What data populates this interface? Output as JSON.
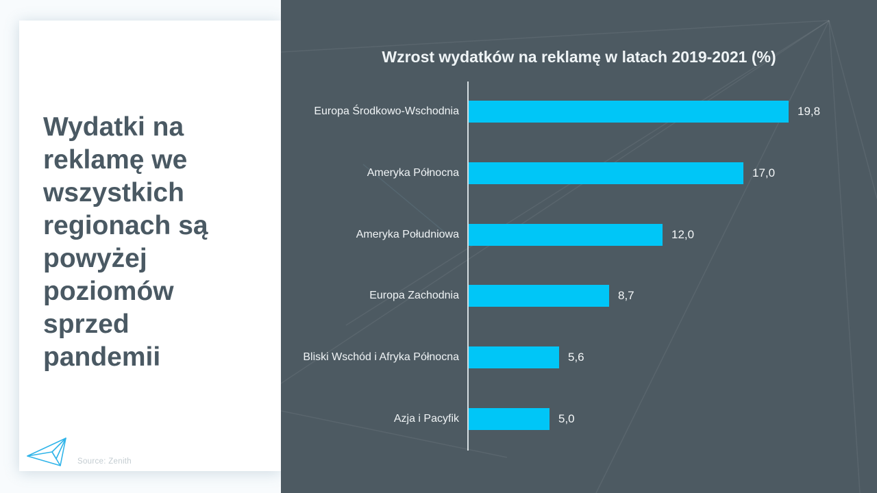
{
  "page": {
    "background": "#4d5a62",
    "left_background": "#f8fbfd",
    "accent": "#00c6f7"
  },
  "left_card": {
    "headline_lines": [
      "Wydatki na",
      "reklamę we",
      "wszystkich",
      "regionach są",
      "powyżej",
      "poziomów",
      "sprzed",
      "pandemii"
    ],
    "headline_color": "#4a5963",
    "source": "Source: Zenith",
    "logo_icon": "paper-plane-icon",
    "logo_color": "#2fb4e9"
  },
  "chart_data": {
    "type": "bar",
    "orientation": "horizontal",
    "title": "Wzrost wydatków na reklamę w latach 2019-2021 (%)",
    "categories": [
      "Europa Środkowo-Wschodnia",
      "Ameryka Północna",
      "Ameryka Południowa",
      "Europa Zachodnia",
      "Bliski Wschód i Afryka Północna",
      "Azja i Pacyfik"
    ],
    "values": [
      19.8,
      17.0,
      12.0,
      8.7,
      5.6,
      5.0
    ],
    "value_labels": [
      "19,8",
      "17,0",
      "12,0",
      "8,7",
      "5,6",
      "5,0"
    ],
    "bar_color": "#00c6f7",
    "text_color": "#f0f4f6",
    "xlabel": "",
    "ylabel": "",
    "xlim": [
      0,
      20
    ],
    "grid": false,
    "legend": false,
    "axis_line": true
  }
}
